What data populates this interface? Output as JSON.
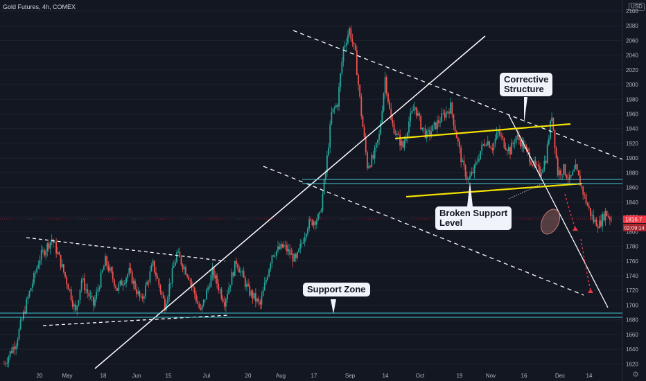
{
  "header": {
    "symbol": "Gold Futures, 4h, COMEX",
    "currency": "USD"
  },
  "chart_data": {
    "type": "candlestick",
    "instrument": "Gold Futures",
    "timeframe": "4h",
    "exchange": "COMEX",
    "y_ticks": [
      1620,
      1640,
      1660,
      1680,
      1700,
      1720,
      1740,
      1760,
      1780,
      1800,
      1820,
      1840,
      1860,
      1880,
      1900,
      1920,
      1940,
      1960,
      1980,
      2000,
      2020,
      2040,
      2060,
      2080,
      2100
    ],
    "ylim": [
      1610,
      2115
    ],
    "x_ticks": [
      "20",
      "May",
      "18",
      "Jun",
      "15",
      "Jul",
      "20",
      "Aug",
      "17",
      "Sep",
      "14",
      "Oct",
      "19",
      "Nov",
      "16",
      "Dec",
      "14"
    ],
    "last_price": "1816.7",
    "countdown": "02:09:14",
    "price_path": [
      [
        0,
        1620
      ],
      [
        2,
        1650
      ],
      [
        4,
        1710
      ],
      [
        6,
        1765
      ],
      [
        8,
        1790
      ],
      [
        9,
        1770
      ],
      [
        11,
        1720
      ],
      [
        12,
        1690
      ],
      [
        13,
        1735
      ],
      [
        15,
        1700
      ],
      [
        17,
        1760
      ],
      [
        19,
        1722
      ],
      [
        21,
        1745
      ],
      [
        23,
        1705
      ],
      [
        25,
        1755
      ],
      [
        27,
        1700
      ],
      [
        29,
        1770
      ],
      [
        31,
        1740
      ],
      [
        33,
        1690
      ],
      [
        35,
        1745
      ],
      [
        37,
        1705
      ],
      [
        39,
        1760
      ],
      [
        41,
        1720
      ],
      [
        43,
        1700
      ],
      [
        45,
        1770
      ],
      [
        47,
        1780
      ],
      [
        49,
        1760
      ],
      [
        51,
        1810
      ],
      [
        53,
        1820
      ],
      [
        54,
        1880
      ],
      [
        55,
        1960
      ],
      [
        56,
        1975
      ],
      [
        57,
        2050
      ],
      [
        58,
        2075
      ],
      [
        59,
        2040
      ],
      [
        60,
        1960
      ],
      [
        61,
        1890
      ],
      [
        62,
        1900
      ],
      [
        63,
        1930
      ],
      [
        64,
        2010
      ],
      [
        65,
        1950
      ],
      [
        66,
        1930
      ],
      [
        67,
        1915
      ],
      [
        68,
        1950
      ],
      [
        69,
        1970
      ],
      [
        70,
        1945
      ],
      [
        71,
        1930
      ],
      [
        72,
        1940
      ],
      [
        73,
        1950
      ],
      [
        74,
        1960
      ],
      [
        75,
        1970
      ],
      [
        76,
        1930
      ],
      [
        77,
        1890
      ],
      [
        78,
        1870
      ],
      [
        79,
        1885
      ],
      [
        80,
        1910
      ],
      [
        81,
        1925
      ],
      [
        82,
        1915
      ],
      [
        83,
        1935
      ],
      [
        84,
        1920
      ],
      [
        85,
        1910
      ],
      [
        86,
        1930
      ],
      [
        87,
        1920
      ],
      [
        88,
        1905
      ],
      [
        89,
        1890
      ],
      [
        90,
        1880
      ],
      [
        91,
        1900
      ],
      [
        92,
        1960
      ],
      [
        93,
        1880
      ],
      [
        94,
        1885
      ],
      [
        95,
        1870
      ],
      [
        96,
        1885
      ],
      [
        97,
        1860
      ],
      [
        98,
        1835
      ],
      [
        99,
        1815
      ],
      [
        100,
        1810
      ],
      [
        101,
        1826
      ],
      [
        102,
        1816.7
      ]
    ],
    "annotations": {
      "corrective": "Corrective\nStructure",
      "broken": "Broken Support\nLevel",
      "support": "Support Zone"
    },
    "colors": {
      "up": "#26a69a",
      "down": "#ef5350",
      "background": "#131722",
      "channel": "#f5e200",
      "support_line": "#46c7d8",
      "projection": "#f23645",
      "grid": "#1e222d"
    }
  }
}
